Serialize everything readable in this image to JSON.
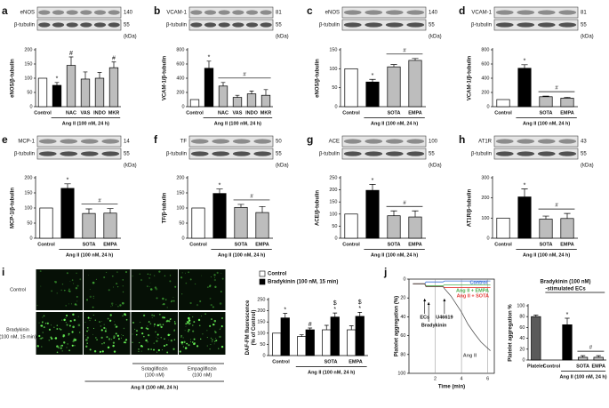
{
  "chart_data": [
    {
      "type": "bar",
      "panel": "a",
      "blot": {
        "bands": [
          {
            "name": "eNOS",
            "kda": 140
          },
          {
            "name": "β-tubulin",
            "kda": 55
          }
        ],
        "unit": "(kDa)"
      },
      "ylabel": "eNOS/β-tubulin",
      "categories": [
        "Control",
        null,
        "NAC",
        "VAS",
        "INDO",
        "MKR"
      ],
      "values": [
        100,
        75,
        145,
        97,
        100,
        137
      ],
      "errors": [
        null,
        10,
        30,
        25,
        20,
        20
      ],
      "colors": [
        "#ffffff",
        "#000000",
        "#bdbdbd",
        "#bdbdbd",
        "#bdbdbd",
        "#bdbdbd"
      ],
      "sig": [
        null,
        "*",
        "#",
        null,
        null,
        "#"
      ],
      "ylim": [
        0,
        200
      ],
      "yticks": [
        0,
        50,
        100,
        150,
        200
      ],
      "group": "Ang II (100 nM, 24 h)"
    },
    {
      "type": "bar",
      "panel": "b",
      "blot": {
        "bands": [
          {
            "name": "VCAM-1",
            "kda": 81
          },
          {
            "name": "β-tubulin",
            "kda": 55
          }
        ],
        "unit": "(kDa)"
      },
      "ylabel": "VCAM-1/β-tubulin",
      "categories": [
        "Control",
        null,
        "NAC",
        "VAS",
        "INDO",
        "MKR"
      ],
      "values": [
        100,
        540,
        290,
        130,
        180,
        160
      ],
      "errors": [
        null,
        100,
        50,
        30,
        40,
        80
      ],
      "colors": [
        "#ffffff",
        "#000000",
        "#bdbdbd",
        "#bdbdbd",
        "#bdbdbd",
        "#bdbdbd"
      ],
      "sig": [
        null,
        "*",
        null,
        null,
        null,
        null
      ],
      "bracket": {
        "label": "#",
        "span": [
          "NAC",
          "MKR"
        ]
      },
      "ylim": [
        0,
        800
      ],
      "yticks": [
        0,
        200,
        400,
        600,
        800
      ],
      "group": "Ang II (100 nM, 24 h)"
    },
    {
      "type": "bar",
      "panel": "c",
      "blot": {
        "bands": [
          {
            "name": "eNOS",
            "kda": 140
          },
          {
            "name": "β-tubulin",
            "kda": 55
          }
        ],
        "unit": "(kDa)"
      },
      "ylabel": "eNOS/β-tubulin",
      "categories": [
        "Control",
        null,
        "SOTA",
        "EMPA"
      ],
      "values": [
        100,
        65,
        105,
        122
      ],
      "errors": [
        null,
        7,
        6,
        5
      ],
      "colors": [
        "#ffffff",
        "#000000",
        "#bdbdbd",
        "#bdbdbd"
      ],
      "sig": [
        null,
        "*",
        null,
        null
      ],
      "bracket": {
        "label": "#",
        "span": [
          "SOTA",
          "EMPA"
        ]
      },
      "ylim": [
        0,
        150
      ],
      "yticks": [
        0,
        50,
        100,
        150
      ],
      "group": "Ang II (100 nM, 24 h)"
    },
    {
      "type": "bar",
      "panel": "d",
      "blot": {
        "bands": [
          {
            "name": "VCAM-1",
            "kda": 81
          },
          {
            "name": "β-tubulin",
            "kda": 55
          }
        ],
        "unit": "(kDa)"
      },
      "ylabel": "VCAM-1/β-tubulin",
      "categories": [
        "Control",
        null,
        "SOTA",
        "EMPA"
      ],
      "values": [
        100,
        540,
        140,
        120
      ],
      "errors": [
        null,
        50,
        8,
        12
      ],
      "colors": [
        "#ffffff",
        "#000000",
        "#bdbdbd",
        "#bdbdbd"
      ],
      "sig": [
        null,
        "*",
        null,
        null
      ],
      "bracket": {
        "label": "#",
        "span": [
          "SOTA",
          "EMPA"
        ]
      },
      "ylim": [
        0,
        800
      ],
      "yticks": [
        0,
        200,
        400,
        600,
        800
      ],
      "group": "Ang II (100 nM, 24 h)"
    },
    {
      "type": "bar",
      "panel": "e",
      "blot": {
        "bands": [
          {
            "name": "MCP-1",
            "kda": 14
          },
          {
            "name": "β-tubulin",
            "kda": 55
          }
        ],
        "unit": "(kDa)"
      },
      "ylabel": "MCP-1/β-tubulin",
      "categories": [
        "Control",
        null,
        "SOTA",
        "EMPA"
      ],
      "values": [
        100,
        165,
        82,
        83
      ],
      "errors": [
        null,
        15,
        15,
        15
      ],
      "colors": [
        "#ffffff",
        "#000000",
        "#bdbdbd",
        "#bdbdbd"
      ],
      "sig": [
        null,
        "*",
        null,
        null
      ],
      "bracket": {
        "label": "#",
        "span": [
          "SOTA",
          "EMPA"
        ]
      },
      "ylim": [
        0,
        200
      ],
      "yticks": [
        0,
        50,
        100,
        150,
        200
      ],
      "group": "Ang II (100 nM, 24 h)"
    },
    {
      "type": "bar",
      "panel": "f",
      "blot": {
        "bands": [
          {
            "name": "TF",
            "kda": 50
          },
          {
            "name": "β-tubulin",
            "kda": 55
          }
        ],
        "unit": "(kDa)"
      },
      "ylabel": "TF/β-tubulin",
      "categories": [
        "Control",
        null,
        "SOTA",
        "EMPA"
      ],
      "values": [
        100,
        148,
        102,
        85
      ],
      "errors": [
        null,
        15,
        10,
        20
      ],
      "colors": [
        "#ffffff",
        "#000000",
        "#bdbdbd",
        "#bdbdbd"
      ],
      "sig": [
        null,
        "*",
        null,
        null
      ],
      "bracket": {
        "label": "#",
        "span": [
          "SOTA",
          "EMPA"
        ]
      },
      "ylim": [
        0,
        200
      ],
      "yticks": [
        0,
        50,
        100,
        150,
        200
      ],
      "group": "Ang II (100 nM, 24 h)"
    },
    {
      "type": "bar",
      "panel": "g",
      "blot": {
        "bands": [
          {
            "name": "ACE",
            "kda": 100
          },
          {
            "name": "β-tubulin",
            "kda": 55
          }
        ],
        "unit": "(kDa)"
      },
      "ylabel": "ACE/β-tubulin",
      "categories": [
        "Control",
        null,
        "SOTA",
        "EMPA"
      ],
      "values": [
        100,
        198,
        93,
        88
      ],
      "errors": [
        null,
        25,
        20,
        25
      ],
      "colors": [
        "#ffffff",
        "#000000",
        "#bdbdbd",
        "#bdbdbd"
      ],
      "sig": [
        null,
        "*",
        null,
        null
      ],
      "bracket": {
        "label": "#",
        "span": [
          "SOTA",
          "EMPA"
        ]
      },
      "ylim": [
        0,
        250
      ],
      "yticks": [
        0,
        50,
        100,
        150,
        200,
        250
      ],
      "group": "Ang II (100 nM, 24 h)"
    },
    {
      "type": "bar",
      "panel": "h",
      "blot": {
        "bands": [
          {
            "name": "AT1R",
            "kda": 43
          },
          {
            "name": "β-tubulin",
            "kda": 55
          }
        ],
        "unit": "(kDa)"
      },
      "ylabel": "AT1R/β-tubulin",
      "categories": [
        "Control",
        null,
        "SOTA",
        "EMPA"
      ],
      "values": [
        100,
        205,
        95,
        98
      ],
      "errors": [
        null,
        40,
        15,
        25
      ],
      "colors": [
        "#ffffff",
        "#000000",
        "#bdbdbd",
        "#bdbdbd"
      ],
      "sig": [
        null,
        "*",
        null,
        null
      ],
      "bracket": {
        "label": "#",
        "span": [
          "SOTA",
          "EMPA"
        ]
      },
      "ylim": [
        0,
        300
      ],
      "yticks": [
        0,
        100,
        200,
        300
      ],
      "group": "Ang II (100 nM, 24 h)"
    },
    {
      "type": "bar",
      "panel": "i",
      "ylabel": [
        "DAF-FM fluorescence",
        "(% of Control)"
      ],
      "categories": [
        "Control",
        null,
        "SOTA",
        "EMPA"
      ],
      "series": [
        {
          "name": "Control",
          "color": "#ffffff",
          "values": [
            100,
            85,
            115,
            115
          ],
          "errors": [
            null,
            8,
            20,
            18
          ]
        },
        {
          "name": "Bradykinin (100 nM, 15 min)",
          "color": "#000000",
          "values": [
            168,
            115,
            172,
            175
          ],
          "errors": [
            20,
            8,
            18,
            18
          ],
          "sig": [
            [
              "*"
            ],
            [
              "#"
            ],
            [
              "$",
              "*"
            ],
            [
              "$",
              "*"
            ]
          ]
        }
      ],
      "ylim": [
        0,
        250
      ],
      "yticks": [
        0,
        50,
        100,
        150,
        200,
        250
      ],
      "group": "Ang II (100 nM, 24 h)"
    },
    {
      "type": "line",
      "panel": "j",
      "xlabel": "Time (min)",
      "ylabel": "Platelet aggregation (%)",
      "x": [
        0.3,
        1.2,
        1.3,
        2.6,
        2.7,
        3.2,
        4,
        4.5,
        5,
        5.5,
        6.2
      ],
      "series": [
        {
          "name": "Control",
          "color": "#3a6fd8",
          "values": [
            5,
            5,
            3,
            3,
            2,
            2,
            2,
            2,
            2,
            2,
            2
          ]
        },
        {
          "name": "Ang II + EMPA",
          "color": "#4caf50",
          "values": [
            5,
            5,
            7,
            7,
            6,
            6,
            6,
            6,
            6,
            6,
            6
          ]
        },
        {
          "name": "Ang II + SOTA",
          "color": "#e53935",
          "values": [
            5,
            5,
            8,
            8,
            9,
            9,
            9,
            9,
            9,
            9,
            9
          ]
        },
        {
          "name": "Ang II",
          "color": "#555555",
          "values": [
            5,
            5,
            8,
            8,
            10,
            18,
            35,
            48,
            58,
            67,
            76
          ]
        }
      ],
      "annotations": [
        "ECs",
        "Bradykinin",
        "U46619"
      ],
      "xlim": [
        0,
        6.5
      ],
      "xticks": [
        2,
        4,
        6
      ],
      "ylim": [
        0,
        100
      ],
      "yticks": [
        0,
        20,
        40,
        60,
        80,
        100
      ],
      "y_inverted": true,
      "grid": true
    },
    {
      "type": "bar",
      "title": [
        "Bradykinin (100 nM)",
        "-stimulated ECs"
      ],
      "ylabel": "Platelet aggregation %",
      "categories": [
        "Platelet",
        "Control",
        null,
        "SOTA",
        "EMPA"
      ],
      "values": [
        80,
        0,
        65,
        5,
        5
      ],
      "errors": [
        3,
        null,
        12,
        3,
        3
      ],
      "colors": [
        "#5a5a5a",
        "#ffffff",
        "#000000",
        "#bdbdbd",
        "#bdbdbd"
      ],
      "sig": [
        null,
        null,
        "*",
        null,
        null
      ],
      "bracket": {
        "label": "#",
        "span": [
          "SOTA",
          "EMPA"
        ]
      },
      "ylim": [
        0,
        100
      ],
      "yticks": [
        0,
        20,
        40,
        60,
        80,
        100
      ],
      "group": "Ang II (100 nM, 24 h)"
    }
  ],
  "micrographs": {
    "row_labels": [
      [
        "Control"
      ],
      [
        "Bradykinin",
        "(100 nM, 15 min)"
      ]
    ],
    "column_labels": [
      [
        "Sotagliflozin",
        "(100 nM)"
      ],
      [
        "Empagliflozin",
        "(100 nM)"
      ]
    ],
    "group_label": "Ang II (100 nM, 24 h)"
  }
}
